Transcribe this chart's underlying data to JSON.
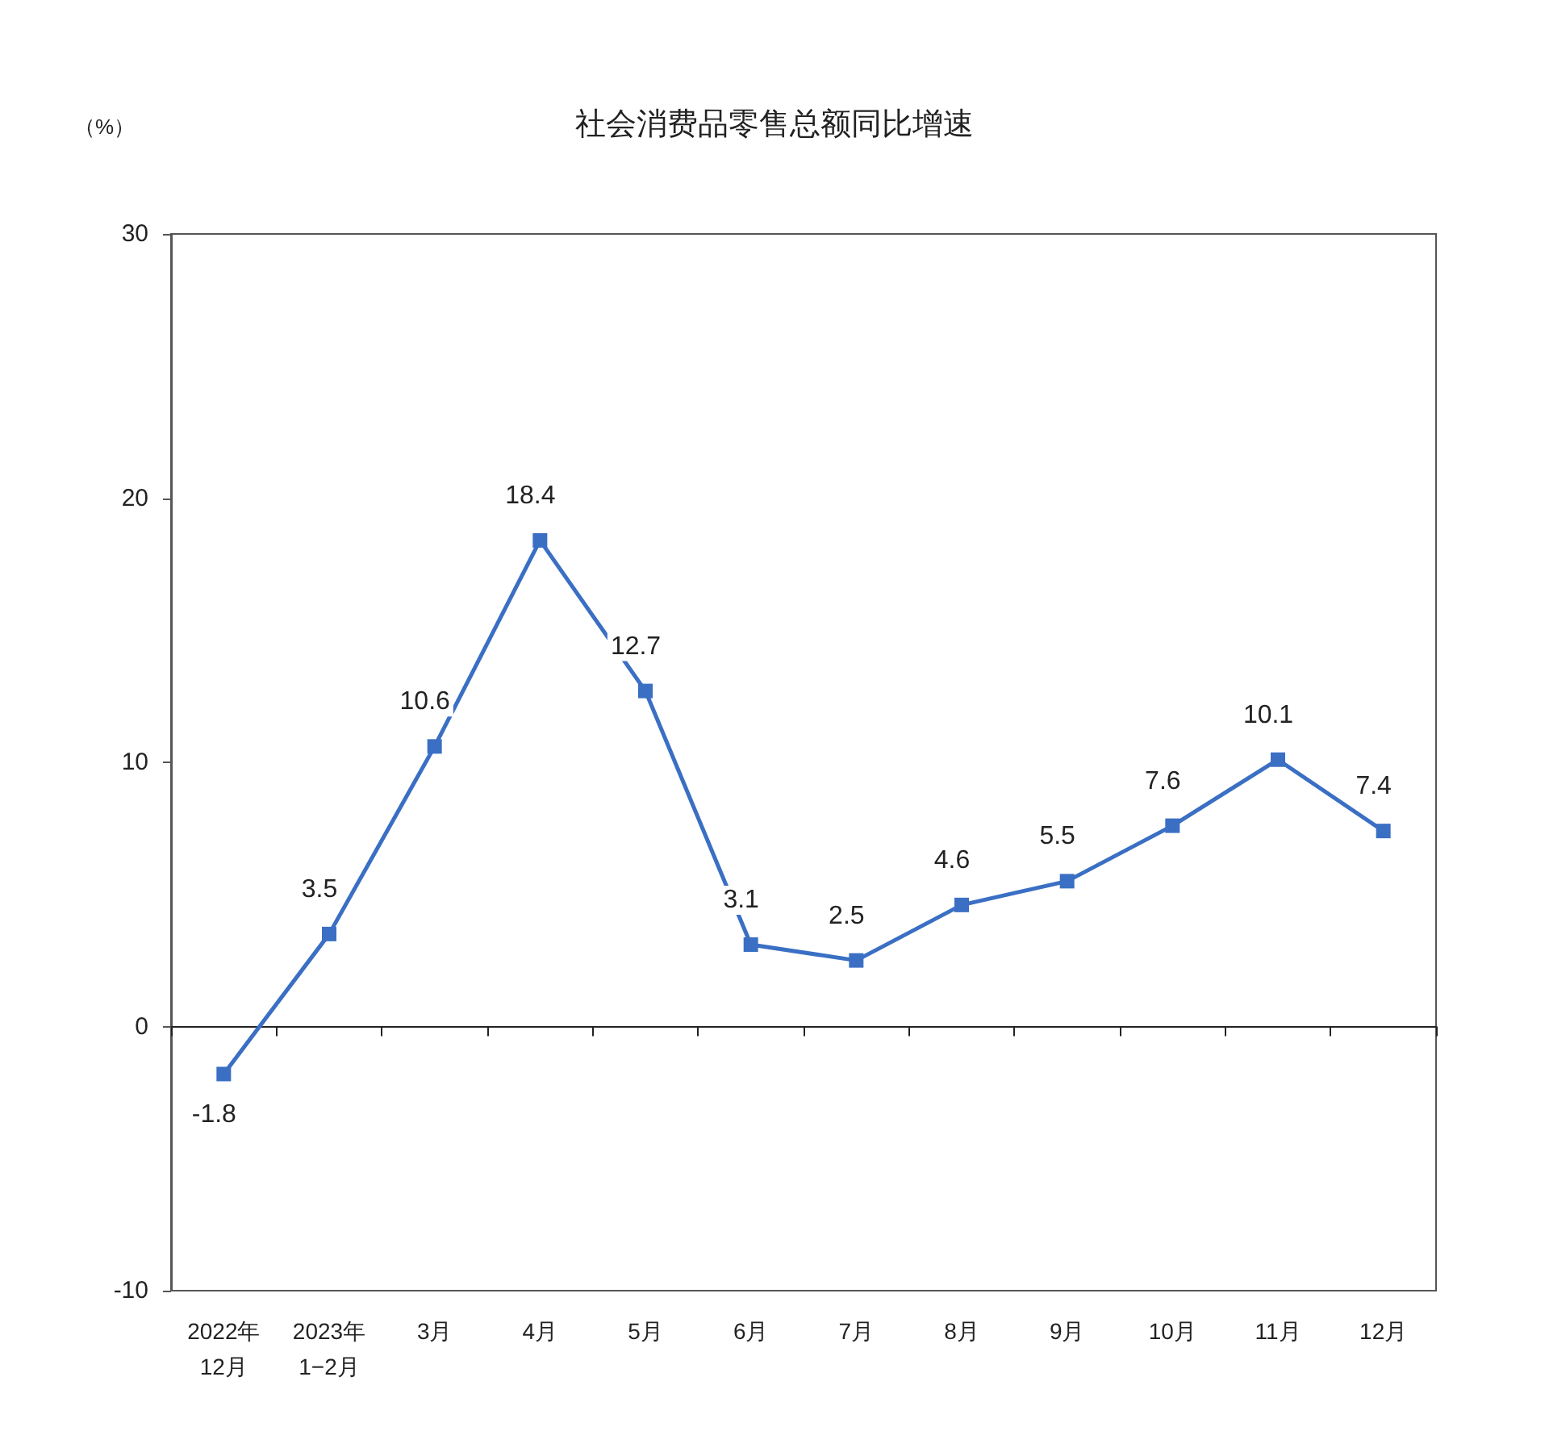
{
  "chart_data": {
    "type": "line",
    "title": "社会消费品零售总额同比增速",
    "ylabel": "（%）",
    "categories": [
      "2022年\n12月",
      "2023年\n1−2月",
      "3月",
      "4月",
      "5月",
      "6月",
      "7月",
      "8月",
      "9月",
      "10月",
      "11月",
      "12月"
    ],
    "series": [
      {
        "color": "#3a6fc4",
        "values": [
          -1.8,
          3.5,
          10.6,
          18.4,
          12.7,
          3.1,
          2.5,
          4.6,
          5.5,
          7.6,
          10.1,
          7.4
        ]
      }
    ],
    "ylim": [
      -10,
      30
    ],
    "yticks": [
      -10,
      0,
      10,
      20,
      30
    ],
    "data_labels": true,
    "marker": "square",
    "line_style": "solid"
  }
}
